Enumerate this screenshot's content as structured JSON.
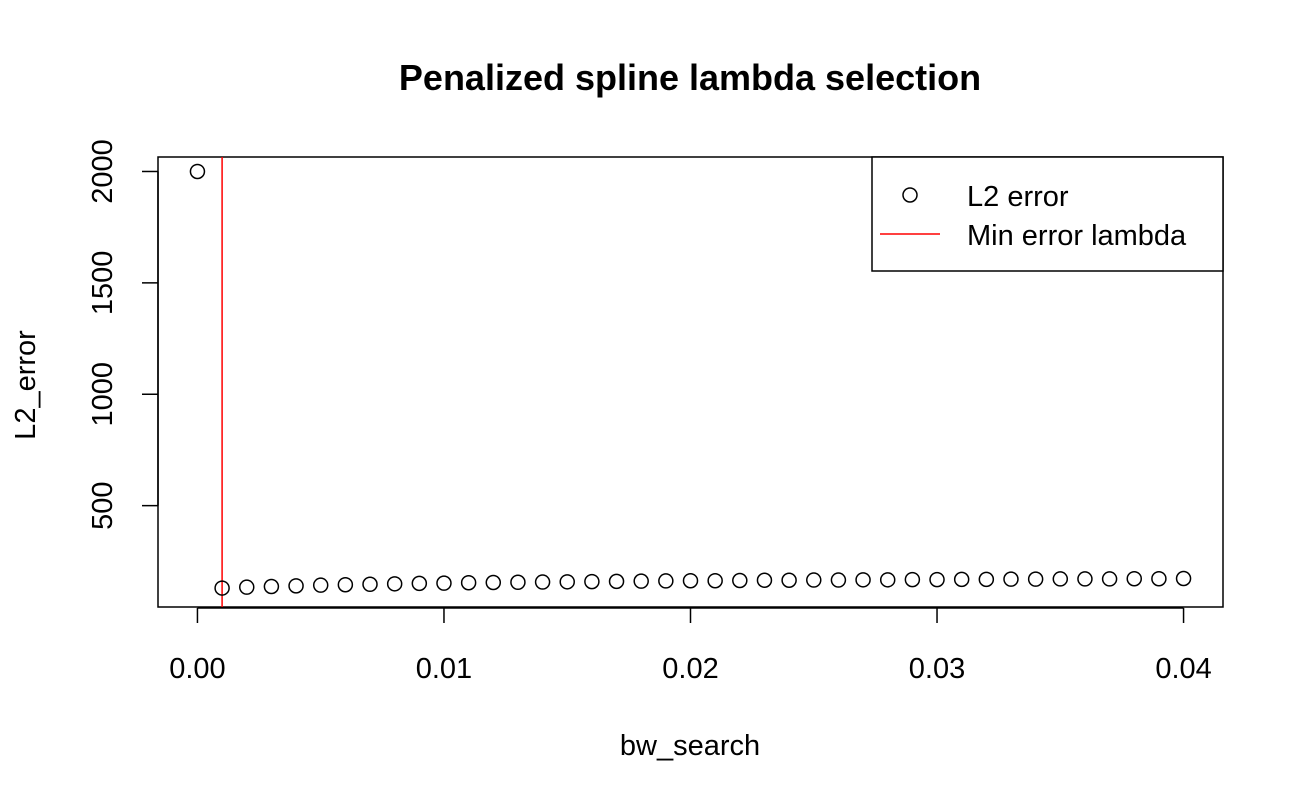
{
  "chart_data": {
    "type": "scatter",
    "title": "Penalized spline lambda selection",
    "xlabel": "bw_search",
    "ylabel": "L2_error",
    "xlim": [
      -0.0016,
      0.0416
    ],
    "ylim": [
      45,
      2065
    ],
    "x_ticks": [
      0.0,
      0.01,
      0.02,
      0.03,
      0.04
    ],
    "x_tick_labels": [
      "0.00",
      "0.01",
      "0.02",
      "0.03",
      "0.04"
    ],
    "y_ticks": [
      500,
      1000,
      1500,
      2000
    ],
    "y_tick_labels": [
      "500",
      "1000",
      "1500",
      "2000"
    ],
    "grid": false,
    "legend_position": "top-right",
    "series": [
      {
        "name": "L2 error",
        "marker": "open-circle",
        "color": "#000000",
        "x": [
          0.0,
          0.001,
          0.002,
          0.003,
          0.004,
          0.005,
          0.006,
          0.007,
          0.008,
          0.009,
          0.01,
          0.011,
          0.012,
          0.013,
          0.014,
          0.015,
          0.016,
          0.017,
          0.018,
          0.019,
          0.02,
          0.021,
          0.022,
          0.023,
          0.024,
          0.025,
          0.026,
          0.027,
          0.028,
          0.029,
          0.03,
          0.031,
          0.032,
          0.033,
          0.034,
          0.035,
          0.036,
          0.037,
          0.038,
          0.039,
          0.04
        ],
        "y": [
          2000,
          130,
          134,
          137,
          140,
          143,
          145,
          147,
          149,
          151,
          152,
          154,
          155,
          156,
          157,
          158,
          159,
          160,
          161,
          162,
          163,
          163,
          164,
          165,
          165,
          166,
          166,
          167,
          167,
          168,
          168,
          169,
          169,
          170,
          170,
          171,
          171,
          171,
          172,
          172,
          173
        ]
      }
    ],
    "vline": {
      "name": "Min error lambda",
      "x": 0.001,
      "color": "#ff0000"
    }
  }
}
